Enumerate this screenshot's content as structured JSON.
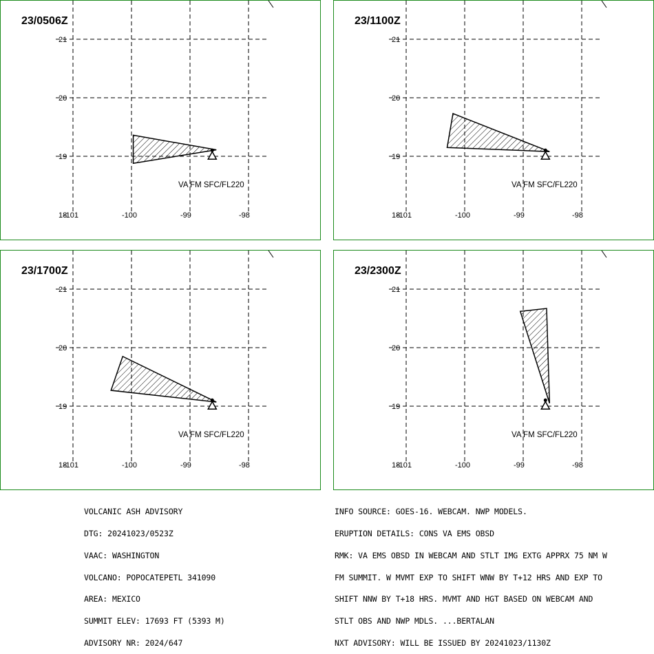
{
  "panels": [
    {
      "title": "23/0506Z",
      "label": "VA FM SFC/FL220",
      "polygon": [
        [
          -99.97,
          19.36
        ],
        [
          -98.55,
          19.11
        ],
        [
          -99.97,
          18.88
        ]
      ]
    },
    {
      "title": "23/1100Z",
      "label": "VA FM SFC/FL220",
      "polygon": [
        [
          -100.2,
          19.73
        ],
        [
          -98.55,
          19.08
        ],
        [
          -100.3,
          19.15
        ]
      ]
    },
    {
      "title": "23/1700Z",
      "label": "VA FM SFC/FL220",
      "polygon": [
        [
          -100.15,
          19.85
        ],
        [
          -98.55,
          19.07
        ],
        [
          -100.35,
          19.27
        ]
      ]
    },
    {
      "title": "23/2300Z",
      "label": "VA FM SFC/FL220",
      "polygon": [
        [
          -99.05,
          20.62
        ],
        [
          -98.6,
          20.67
        ],
        [
          -98.55,
          19.05
        ]
      ]
    }
  ],
  "axes": {
    "lat_ticks": [
      "21",
      "20",
      "19",
      "18"
    ],
    "lon_ticks": [
      "-101",
      "-100",
      "-99",
      "-98"
    ]
  },
  "volcano": {
    "lon": -98.62,
    "lat": 19.02
  },
  "footer": {
    "left": [
      "VOLCANIC ASH ADVISORY",
      "DTG: 20241023/0523Z",
      "VAAC: WASHINGTON",
      "VOLCANO: POPOCATEPETL 341090",
      "AREA: MEXICO",
      "SUMMIT ELEV: 17693 FT (5393 M)",
      "ADVISORY NR: 2024/647"
    ],
    "right": [
      "INFO SOURCE: GOES-16. WEBCAM. NWP MODELS.",
      "ERUPTION DETAILS: CONS VA EMS OBSD",
      "RMK: VA EMS OBSD IN WEBCAM AND STLT IMG EXTG APPRX 75 NM W",
      "FM SUMMIT. W MVMT EXP TO SHIFT WNW BY T+12 HRS AND EXP TO",
      "SHIFT NNW BY T+18 HRS. MVMT AND HGT BASED ON WEBCAM AND",
      "STLT OBS AND NWP MDLS. ...BERTALAN",
      "NXT ADVISORY: WILL BE ISSUED BY 20241023/1130Z"
    ]
  }
}
